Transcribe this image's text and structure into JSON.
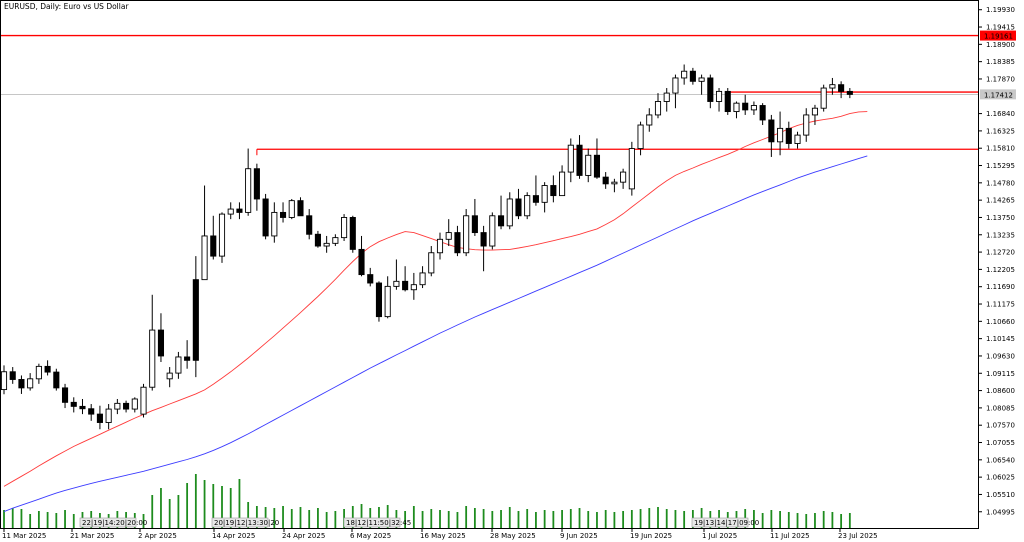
{
  "chart_title": "EURUSD, Daily:  Euro vs US Dollar",
  "price_scale": [
    "1.19930",
    "1.19415",
    "1.18900",
    "1.18385",
    "1.17870",
    "1.16840",
    "1.16325",
    "1.15810",
    "1.15295",
    "1.14780",
    "1.14265",
    "1.13750",
    "1.13235",
    "1.12720",
    "1.12205",
    "1.11690",
    "1.11175",
    "1.10660",
    "1.10145",
    "1.09630",
    "1.09115",
    "1.08600",
    "1.08085",
    "1.07570",
    "1.07055",
    "1.06540",
    "1.06025",
    "1.05510",
    "1.04995"
  ],
  "price_labels": {
    "red_line": "1.19161",
    "current": "1.17412"
  },
  "volume_annotations": [
    "22|19|14:20|20:00",
    "20|19|12|13:30|20",
    "18|12|11:50|32:45",
    "19|13|14|17|09:00"
  ],
  "date_labels": [
    "11 Mar 2025",
    "21 Mar 2025",
    "2 Apr 2025",
    "14 Apr 2025",
    "24 Apr 2025",
    "6 May 2025",
    "16 May 2025",
    "28 May 2025",
    "9 Jun 2025",
    "19 Jun 2025",
    "1 Jul 2025",
    "11 Jul 2025",
    "23 Jul 2025"
  ],
  "colors": {
    "bull": "#ffffff",
    "bear": "#000000",
    "ma_fast": "#ff3b3b",
    "ma_slow": "#3c3cff",
    "level_line": "#ff0000",
    "volume": "#1e8c1e",
    "price_line": "#b4b4b4"
  },
  "chart_data": {
    "type": "candlestick",
    "symbol": "EURUSD",
    "timeframe": "Daily",
    "ylim": [
      1.0475,
      1.201
    ],
    "levels": [
      1.19161,
      1.1748,
      1.1578
    ],
    "current_price": 1.17412,
    "candles": [
      [
        1.0863,
        1.0935,
        1.0849,
        1.0916
      ],
      [
        1.0916,
        1.093,
        1.088,
        1.0893
      ],
      [
        1.0893,
        1.0905,
        1.085,
        1.0868
      ],
      [
        1.0868,
        1.0912,
        1.086,
        1.0895
      ],
      [
        1.0895,
        1.094,
        1.088,
        1.0932
      ],
      [
        1.0932,
        1.095,
        1.0905,
        1.0915
      ],
      [
        1.0915,
        1.0925,
        1.086,
        1.0868
      ],
      [
        1.0868,
        1.088,
        1.0808,
        1.0825
      ],
      [
        1.0825,
        1.084,
        1.0795,
        1.0813
      ],
      [
        1.0813,
        1.0835,
        1.079,
        1.0806
      ],
      [
        1.0806,
        1.082,
        1.077,
        1.079
      ],
      [
        1.079,
        1.0815,
        1.0745,
        1.0765
      ],
      [
        1.0765,
        1.082,
        1.0745,
        1.0805
      ],
      [
        1.0805,
        1.0835,
        1.079,
        1.0822
      ],
      [
        1.0822,
        1.083,
        1.0795,
        1.0805
      ],
      [
        1.0805,
        1.084,
        1.0795,
        1.0835
      ],
      [
        1.079,
        1.088,
        1.078,
        1.087
      ],
      [
        1.087,
        1.1145,
        1.086,
        1.104
      ],
      [
        1.104,
        1.109,
        1.0945,
        1.0963
      ],
      [
        1.0895,
        1.093,
        1.087,
        1.0912
      ],
      [
        1.0912,
        1.0975,
        1.0895,
        1.096
      ],
      [
        1.096,
        1.101,
        1.0925,
        1.095
      ],
      [
        1.119,
        1.126,
        1.09,
        1.095
      ],
      [
        1.119,
        1.147,
        1.119,
        1.132
      ],
      [
        1.132,
        1.138,
        1.125,
        1.126
      ],
      [
        1.126,
        1.139,
        1.124,
        1.1385
      ],
      [
        1.1385,
        1.142,
        1.137,
        1.14
      ],
      [
        1.14,
        1.142,
        1.137,
        1.139
      ],
      [
        1.139,
        1.158,
        1.138,
        1.152
      ],
      [
        1.152,
        1.1535,
        1.1395,
        1.143
      ],
      [
        1.143,
        1.1445,
        1.131,
        1.132
      ],
      [
        1.132,
        1.142,
        1.13,
        1.139
      ],
      [
        1.139,
        1.142,
        1.136,
        1.1375
      ],
      [
        1.1375,
        1.143,
        1.137,
        1.1425
      ],
      [
        1.1425,
        1.1435,
        1.138,
        1.138
      ],
      [
        1.138,
        1.14,
        1.131,
        1.1325
      ],
      [
        1.1325,
        1.1335,
        1.1285,
        1.129
      ],
      [
        1.129,
        1.132,
        1.127,
        1.1298
      ],
      [
        1.1298,
        1.1325,
        1.129,
        1.1315
      ],
      [
        1.1315,
        1.1385,
        1.1305,
        1.1375
      ],
      [
        1.1375,
        1.138,
        1.127,
        1.128
      ],
      [
        1.128,
        1.132,
        1.12,
        1.1205
      ],
      [
        1.1205,
        1.1225,
        1.117,
        1.118
      ],
      [
        1.118,
        1.1185,
        1.1065,
        1.108
      ],
      [
        1.108,
        1.12,
        1.1075,
        1.117
      ],
      [
        1.117,
        1.125,
        1.116,
        1.1185
      ],
      [
        1.1185,
        1.123,
        1.1155,
        1.116
      ],
      [
        1.116,
        1.121,
        1.113,
        1.1175
      ],
      [
        1.1175,
        1.123,
        1.1165,
        1.121
      ],
      [
        1.121,
        1.129,
        1.12,
        1.127
      ],
      [
        1.127,
        1.133,
        1.125,
        1.131
      ],
      [
        1.131,
        1.137,
        1.129,
        1.133
      ],
      [
        1.133,
        1.135,
        1.126,
        1.127
      ],
      [
        1.127,
        1.14,
        1.126,
        1.138
      ],
      [
        1.138,
        1.143,
        1.132,
        1.133
      ],
      [
        1.133,
        1.135,
        1.1215,
        1.129
      ],
      [
        1.129,
        1.139,
        1.128,
        1.138
      ],
      [
        1.138,
        1.144,
        1.134,
        1.135
      ],
      [
        1.135,
        1.145,
        1.134,
        1.143
      ],
      [
        1.143,
        1.146,
        1.137,
        1.138
      ],
      [
        1.138,
        1.145,
        1.137,
        1.144
      ],
      [
        1.144,
        1.15,
        1.141,
        1.142
      ],
      [
        1.142,
        1.148,
        1.139,
        1.147
      ],
      [
        1.147,
        1.15,
        1.142,
        1.144
      ],
      [
        1.144,
        1.153,
        1.144,
        1.151
      ],
      [
        1.151,
        1.161,
        1.148,
        1.159
      ],
      [
        1.159,
        1.162,
        1.149,
        1.15
      ],
      [
        1.15,
        1.158,
        1.148,
        1.156
      ],
      [
        1.156,
        1.161,
        1.149,
        1.1495
      ],
      [
        1.1495,
        1.151,
        1.146,
        1.1475
      ],
      [
        1.1475,
        1.149,
        1.145,
        1.148
      ],
      [
        1.148,
        1.152,
        1.146,
        1.151
      ],
      [
        1.146,
        1.16,
        1.144,
        1.158
      ],
      [
        1.158,
        1.166,
        1.156,
        1.165
      ],
      [
        1.165,
        1.17,
        1.163,
        1.168
      ],
      [
        1.168,
        1.1745,
        1.167,
        1.172
      ],
      [
        1.172,
        1.176,
        1.169,
        1.1745
      ],
      [
        1.1745,
        1.18,
        1.17,
        1.179
      ],
      [
        1.179,
        1.183,
        1.177,
        1.181
      ],
      [
        1.181,
        1.182,
        1.177,
        1.178
      ],
      [
        1.178,
        1.18,
        1.174,
        1.179
      ],
      [
        1.179,
        1.18,
        1.17,
        1.172
      ],
      [
        1.172,
        1.176,
        1.169,
        1.175
      ],
      [
        1.175,
        1.176,
        1.168,
        1.169
      ],
      [
        1.169,
        1.172,
        1.167,
        1.1715
      ],
      [
        1.1715,
        1.174,
        1.168,
        1.1695
      ],
      [
        1.1695,
        1.172,
        1.168,
        1.1708
      ],
      [
        1.1708,
        1.1715,
        1.165,
        1.1665
      ],
      [
        1.1665,
        1.168,
        1.1555,
        1.16
      ],
      [
        1.16,
        1.169,
        1.156,
        1.164
      ],
      [
        1.164,
        1.166,
        1.158,
        1.1595
      ],
      [
        1.1595,
        1.163,
        1.158,
        1.162
      ],
      [
        1.162,
        1.17,
        1.16,
        1.168
      ],
      [
        1.168,
        1.171,
        1.165,
        1.17
      ],
      [
        1.17,
        1.177,
        1.169,
        1.176
      ],
      [
        1.176,
        1.179,
        1.174,
        1.177
      ],
      [
        1.177,
        1.178,
        1.173,
        1.175
      ],
      [
        1.175,
        1.176,
        1.173,
        1.1741
      ]
    ],
    "ma_fast": [
      1.0575,
      1.059,
      1.0605,
      1.062,
      1.0636,
      1.0651,
      1.0666,
      1.068,
      1.0694,
      1.0706,
      1.0718,
      1.073,
      1.0742,
      1.0754,
      1.0766,
      1.0778,
      1.0789,
      1.08,
      1.081,
      1.082,
      1.083,
      1.084,
      1.085,
      1.0862,
      1.0879,
      1.0897,
      1.0916,
      1.0936,
      1.0957,
      1.0979,
      1.1001,
      1.1023,
      1.1046,
      1.1069,
      1.1092,
      1.1116,
      1.114,
      1.1165,
      1.1191,
      1.1218,
      1.1244,
      1.1268,
      1.1288,
      1.1303,
      1.1314,
      1.1324,
      1.1333,
      1.133,
      1.1321,
      1.1312,
      1.1303,
      1.1294,
      1.1286,
      1.1282,
      1.1279,
      1.1278,
      1.1278,
      1.1279,
      1.128,
      1.1284,
      1.1289,
      1.1294,
      1.13,
      1.1306,
      1.1312,
      1.1318,
      1.1325,
      1.1333,
      1.1341,
      1.1354,
      1.1368,
      1.1386,
      1.1406,
      1.1426,
      1.1446,
      1.1466,
      1.1484,
      1.15,
      1.1512,
      1.1522,
      1.1533,
      1.1543,
      1.1553,
      1.1563,
      1.1574,
      1.1586,
      1.1597,
      1.1607,
      1.1617,
      1.1627,
      1.1639,
      1.1649,
      1.1656,
      1.1662,
      1.1666,
      1.167,
      1.1676,
      1.1684,
      1.1689,
      1.169
    ],
    "ma_slow": [
      1.05,
      1.051,
      1.0519,
      1.0528,
      1.0537,
      1.0546,
      1.0555,
      1.0563,
      1.057,
      1.0577,
      1.0584,
      1.059,
      1.0596,
      1.0602,
      1.0608,
      1.0614,
      1.062,
      1.0627,
      1.0634,
      1.0641,
      1.0648,
      1.0655,
      1.0663,
      1.0672,
      1.0682,
      1.0693,
      1.0705,
      1.0718,
      1.0731,
      1.0745,
      1.0759,
      1.0773,
      1.0787,
      1.0801,
      1.0815,
      1.0829,
      1.0843,
      1.0857,
      1.0871,
      1.0885,
      1.0899,
      1.0913,
      1.0927,
      1.094,
      1.0953,
      1.0966,
      1.0979,
      1.0992,
      1.1005,
      1.1018,
      1.1031,
      1.1043,
      1.1055,
      1.1067,
      1.1079,
      1.109,
      1.1101,
      1.1112,
      1.1123,
      1.1134,
      1.1145,
      1.1156,
      1.1167,
      1.1178,
      1.1189,
      1.12,
      1.1211,
      1.1222,
      1.1233,
      1.1245,
      1.1257,
      1.1269,
      1.1281,
      1.1293,
      1.1305,
      1.1317,
      1.1329,
      1.1341,
      1.1353,
      1.1365,
      1.1376,
      1.1387,
      1.1398,
      1.1409,
      1.142,
      1.1431,
      1.1442,
      1.1452,
      1.1462,
      1.1472,
      1.1482,
      1.1492,
      1.1501,
      1.151,
      1.1518,
      1.1526,
      1.1534,
      1.1542,
      1.155,
      1.1558
    ]
  }
}
